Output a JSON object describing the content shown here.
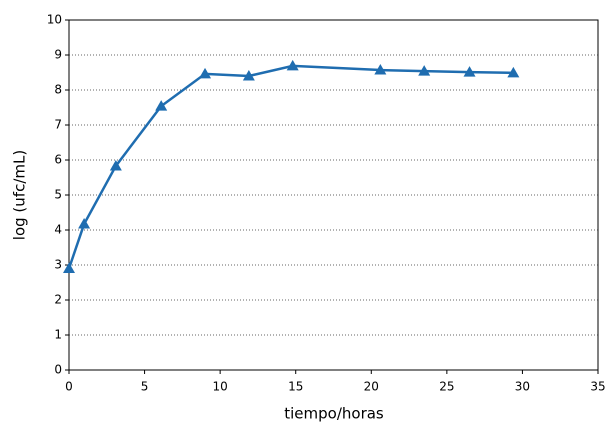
{
  "chart_data": {
    "type": "line",
    "x_label": "tiempo/horas",
    "y_label": "log (ufc/mL)",
    "x": [
      0,
      1,
      3.1,
      6.1,
      9,
      11.9,
      14.8,
      20.6,
      23.5,
      26.5,
      29.4
    ],
    "values": [
      2.9,
      4.17,
      5.83,
      7.54,
      8.46,
      8.4,
      8.69,
      8.57,
      8.54,
      8.51,
      8.49
    ],
    "color": "#1f6db0",
    "marker": "triangle",
    "xlim": [
      0,
      35
    ],
    "xticks": [
      0,
      5,
      10,
      15,
      20,
      25,
      30,
      35
    ],
    "ylim": [
      0,
      10
    ],
    "yticks": [
      0,
      1,
      2,
      3,
      4,
      5,
      6,
      7,
      8,
      9,
      10
    ],
    "grid": true
  }
}
